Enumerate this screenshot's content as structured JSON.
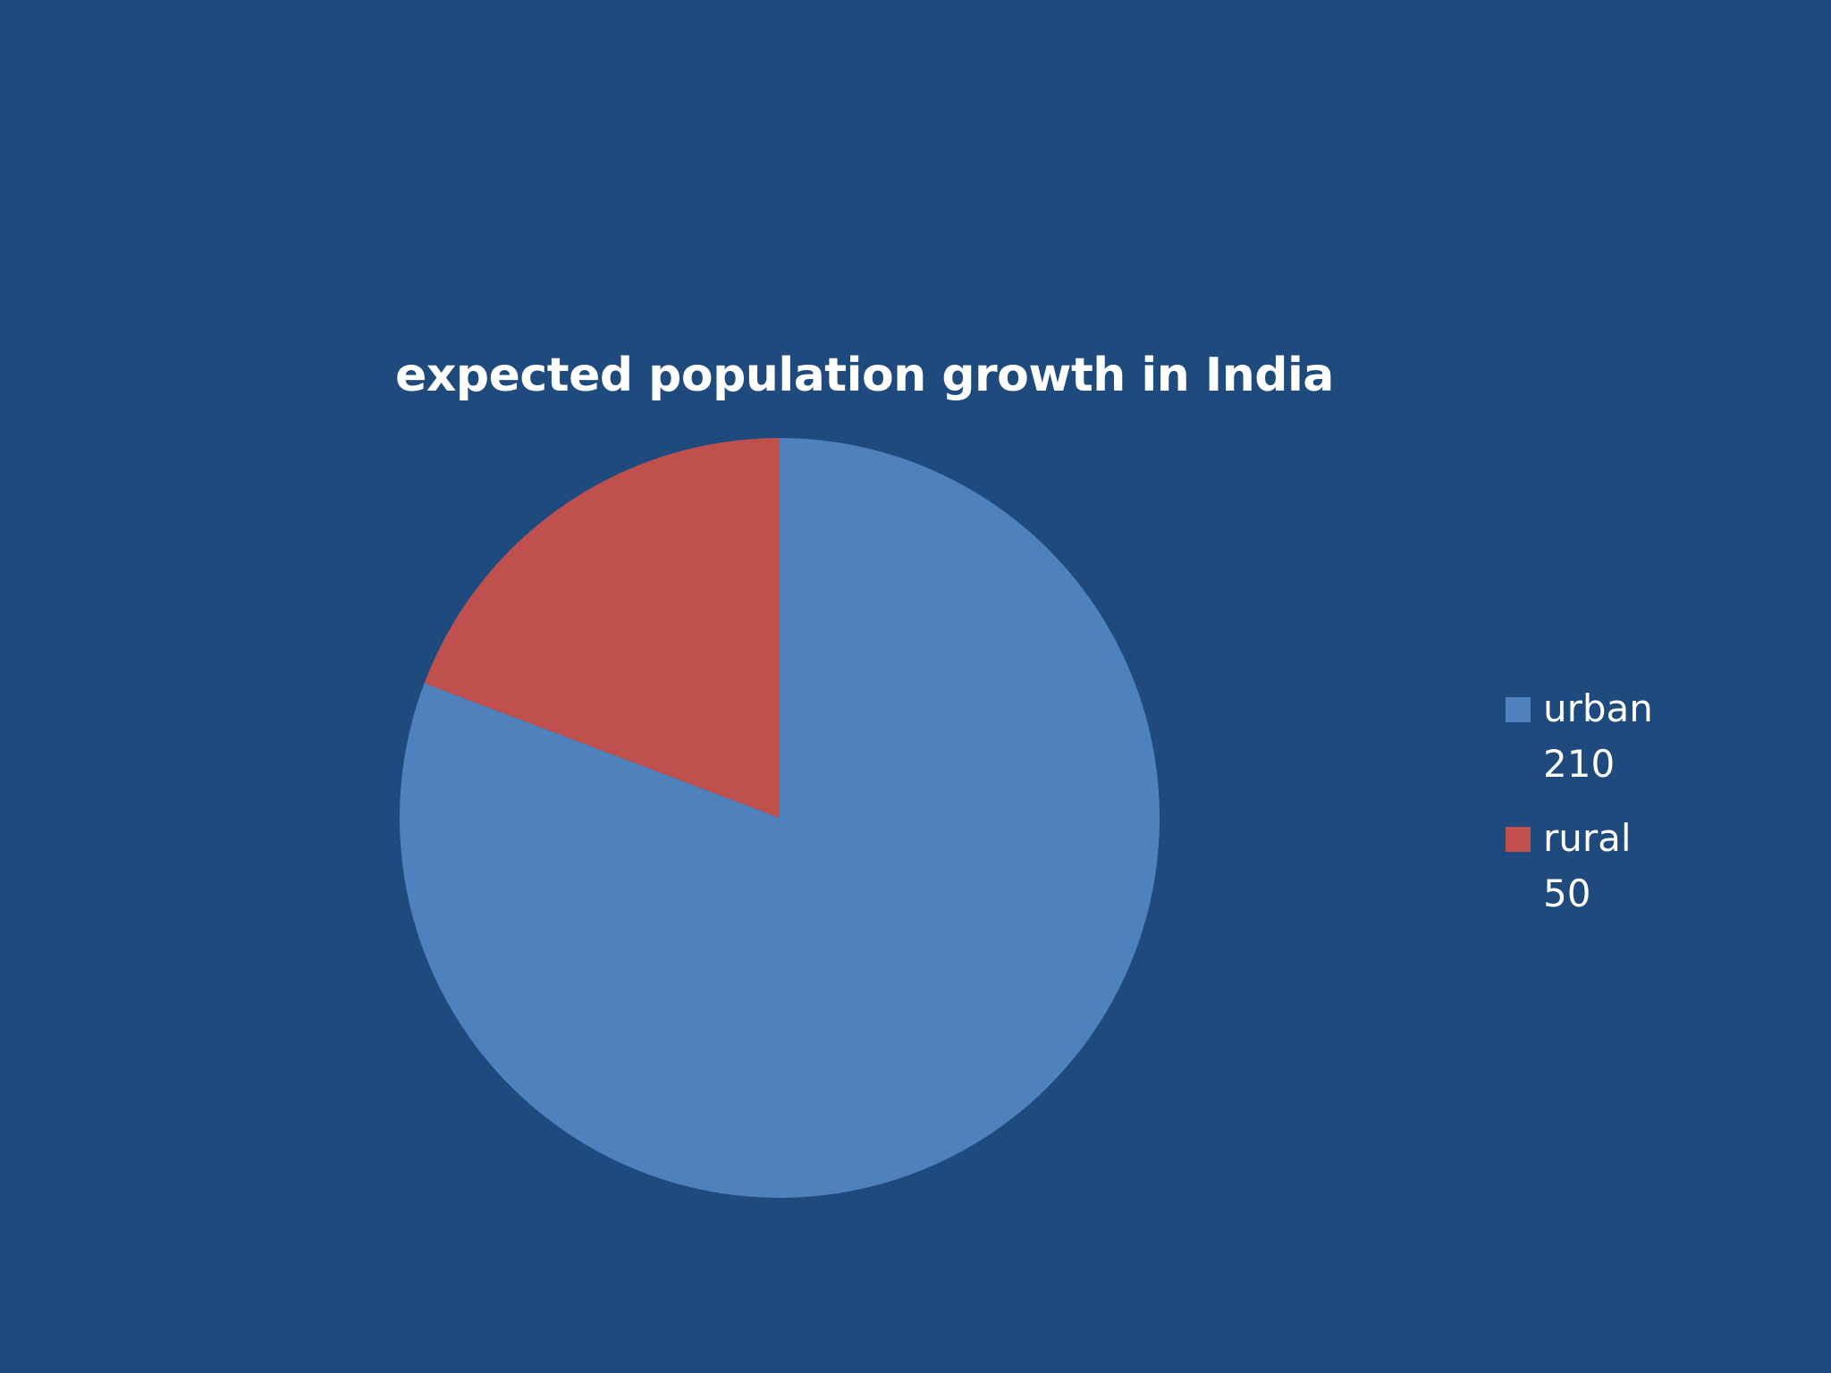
{
  "chart_data": {
    "type": "pie",
    "title": "expected population growth in India",
    "categories": [
      "urban",
      "rural"
    ],
    "values": [
      210,
      50
    ],
    "colors": [
      "#4f81bd",
      "#c0504d"
    ],
    "legend_position": "right",
    "legend": [
      {
        "label": "urban",
        "value": "210"
      },
      {
        "label": "rural",
        "value": "50"
      }
    ]
  },
  "background_color": "#1f4a7d"
}
